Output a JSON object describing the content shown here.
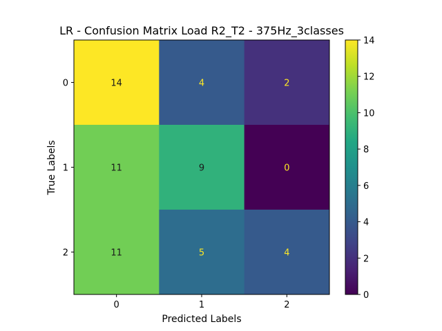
{
  "chart_data": {
    "type": "heatmap",
    "title": "LR - Confusion Matrix Load R2_T2 - 375Hz_3classes",
    "xlabel": "Predicted Labels",
    "ylabel": "True Labels",
    "x_categories": [
      "0",
      "1",
      "2"
    ],
    "y_categories": [
      "0",
      "1",
      "2"
    ],
    "values": [
      [
        14,
        4,
        2
      ],
      [
        11,
        9,
        0
      ],
      [
        11,
        5,
        4
      ]
    ],
    "colorbar": {
      "min": 0,
      "max": 14,
      "ticks": [
        "0",
        "2",
        "4",
        "6",
        "8",
        "10",
        "12",
        "14"
      ],
      "colormap": "viridis"
    }
  }
}
